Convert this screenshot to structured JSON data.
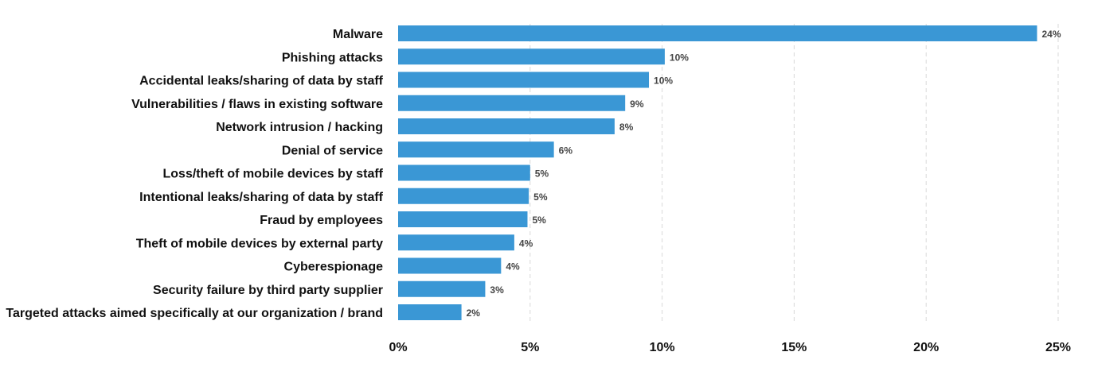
{
  "chart_data": {
    "type": "bar",
    "orientation": "horizontal",
    "categories": [
      "Malware",
      "Phishing attacks",
      "Accidental leaks/sharing of data by staff",
      "Vulnerabilities / flaws in existing software",
      "Network intrusion / hacking",
      "Denial of service",
      "Loss/theft of mobile devices by staff",
      "Intentional leaks/sharing of data by staff",
      "Fraud by employees",
      "Theft of mobile devices by external party",
      "Cyberespionage",
      "Security failure by third party supplier",
      "Targeted attacks aimed specifically at our organization / brand"
    ],
    "values": [
      24.2,
      10.1,
      9.5,
      8.6,
      8.2,
      5.9,
      5.0,
      4.95,
      4.9,
      4.4,
      3.9,
      3.3,
      2.4
    ],
    "value_labels": [
      "24%",
      "10%",
      "10%",
      "9%",
      "8%",
      "6%",
      "5%",
      "5%",
      "5%",
      "4%",
      "4%",
      "3%",
      "2%"
    ],
    "xlim": [
      0,
      25
    ],
    "xticks": [
      0,
      5,
      10,
      15,
      20,
      25
    ],
    "xtick_labels": [
      "0%",
      "5%",
      "10%",
      "15%",
      "20%",
      "25%"
    ],
    "grid": "vertical dashed",
    "title": "",
    "xlabel": "",
    "ylabel": "",
    "bar_color": "#3a97d5",
    "grid_color": "#d9d9d9"
  }
}
